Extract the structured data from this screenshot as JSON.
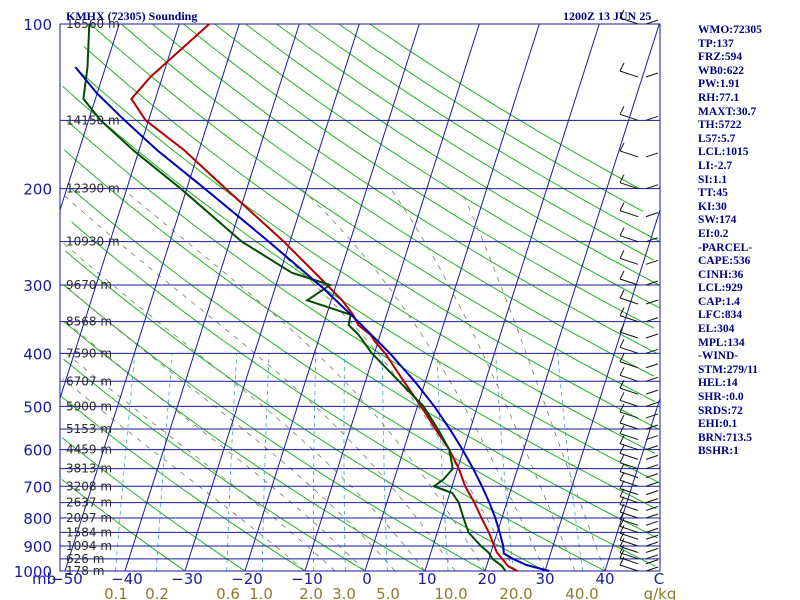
{
  "header": {
    "station": "KMHX (72305) Sounding",
    "time": "1200Z 13 JUN 25"
  },
  "stats": [
    "WMO:72305",
    "TP:137",
    "FRZ:594",
    "WB0:622",
    "PW:1.91",
    "RH:77.1",
    "MAXT:30.7",
    "TH:5722",
    "L57:5.7",
    "LCL:1015",
    "LI:-2.7",
    "SI:1.1",
    "TT:45",
    "KI:30",
    "SW:174",
    "EI:0.2",
    "-PARCEL-",
    "CAPE:536",
    "CINH:36",
    "LCL:929",
    "CAP:1.4",
    "LFC:834",
    "EL:304",
    "MPL:134",
    "-WIND-",
    "STM:279/11",
    "HEL:14",
    "SHR-:0.0",
    "SRDS:72",
    "EHI:0.1",
    "BRN:713.5",
    "BSHR:1"
  ],
  "chart_data": {
    "type": "line",
    "title": "KMHX (72305) Sounding",
    "subtitle": "1200Z 13 JUN 25",
    "xlabel": "C",
    "ylabel": "mb",
    "ylim": [
      1000,
      100
    ],
    "xlim": [
      -50,
      50
    ],
    "y_scale": "log",
    "pressure_ticks": [
      100,
      200,
      300,
      400,
      500,
      600,
      700,
      800,
      900,
      1000
    ],
    "pressure_unit_label": "mb",
    "temperature_ticks": [
      "-50",
      "-40",
      "-30",
      "-20",
      "-10",
      "0",
      "10",
      "20",
      "30",
      "40"
    ],
    "temperature_unit_label": "C",
    "mixing_ratio_ticks": [
      "0.1",
      "0.2",
      "0.6",
      "1.0",
      "2.0",
      "3.0",
      "5.0",
      "10.0",
      "20.0",
      "40.0"
    ],
    "mixing_ratio_unit_label": "g/kg",
    "height_labels": [
      {
        "p": 100,
        "text": "16560 m"
      },
      {
        "p": 150,
        "text": "14150 m"
      },
      {
        "p": 200,
        "text": "12390 m"
      },
      {
        "p": 250,
        "text": "10930 m"
      },
      {
        "p": 300,
        "text": "9670 m"
      },
      {
        "p": 350,
        "text": "8568 m"
      },
      {
        "p": 400,
        "text": "7590 m"
      },
      {
        "p": 450,
        "text": "6707 m"
      },
      {
        "p": 500,
        "text": "5900 m"
      },
      {
        "p": 550,
        "text": "5153 m"
      },
      {
        "p": 600,
        "text": "4459 m"
      },
      {
        "p": 650,
        "text": "3813 m"
      },
      {
        "p": 700,
        "text": "3208 m"
      },
      {
        "p": 750,
        "text": "2637 m"
      },
      {
        "p": 800,
        "text": "2097 m"
      },
      {
        "p": 850,
        "text": "1584 m"
      },
      {
        "p": 900,
        "text": "1094 m"
      },
      {
        "p": 950,
        "text": "626 m"
      },
      {
        "p": 1000,
        "text": "178 m"
      }
    ],
    "series": [
      {
        "key": "temperature",
        "color": "#b40000",
        "points": [
          [
            1000,
            25.4
          ],
          [
            980,
            23.6
          ],
          [
            950,
            22.2
          ],
          [
            925,
            21.0
          ],
          [
            900,
            20.2
          ],
          [
            850,
            18.6
          ],
          [
            800,
            16.6
          ],
          [
            750,
            14.6
          ],
          [
            700,
            12.2
          ],
          [
            650,
            10.2
          ],
          [
            600,
            7.6
          ],
          [
            550,
            4.2
          ],
          [
            500,
            0.6
          ],
          [
            450,
            -3.6
          ],
          [
            400,
            -8.2
          ],
          [
            380,
            -10.6
          ],
          [
            370,
            -11.6
          ],
          [
            355,
            -14.2
          ],
          [
            340,
            -15.6
          ],
          [
            320,
            -18.2
          ],
          [
            300,
            -21.5
          ],
          [
            250,
            -31.0
          ],
          [
            200,
            -43.5
          ],
          [
            170,
            -52.5
          ],
          [
            150,
            -60.5
          ],
          [
            137,
            -64.0
          ],
          [
            125,
            -62.0
          ],
          [
            110,
            -58.0
          ],
          [
            100,
            -55.0
          ]
        ]
      },
      {
        "key": "dewpoint",
        "color": "#004c00",
        "points": [
          [
            1000,
            23.4
          ],
          [
            980,
            22.6
          ],
          [
            950,
            20.6
          ],
          [
            925,
            19.6
          ],
          [
            900,
            18.0
          ],
          [
            850,
            15.2
          ],
          [
            800,
            13.6
          ],
          [
            750,
            12.0
          ],
          [
            720,
            10.4
          ],
          [
            700,
            7.0
          ],
          [
            680,
            8.2
          ],
          [
            650,
            9.2
          ],
          [
            600,
            7.6
          ],
          [
            550,
            4.6
          ],
          [
            500,
            1.0
          ],
          [
            450,
            -4.4
          ],
          [
            400,
            -10.4
          ],
          [
            370,
            -13.6
          ],
          [
            355,
            -15.8
          ],
          [
            340,
            -16.0
          ],
          [
            320,
            -24.0
          ],
          [
            300,
            -21.0
          ],
          [
            285,
            -28.0
          ],
          [
            250,
            -38.0
          ],
          [
            200,
            -51.0
          ],
          [
            170,
            -61.0
          ],
          [
            150,
            -68.0
          ],
          [
            137,
            -72.0
          ],
          [
            120,
            -73.0
          ],
          [
            100,
            -75.0
          ]
        ]
      },
      {
        "key": "parcel",
        "color": "#0000b4",
        "points": [
          [
            1000,
            30.7
          ],
          [
            975,
            26.6
          ],
          [
            950,
            24.0
          ],
          [
            929,
            22.2
          ],
          [
            900,
            21.7
          ],
          [
            850,
            20.4
          ],
          [
            800,
            18.9
          ],
          [
            750,
            17.1
          ],
          [
            700,
            15.0
          ],
          [
            650,
            12.6
          ],
          [
            600,
            9.8
          ],
          [
            550,
            6.6
          ],
          [
            500,
            2.8
          ],
          [
            450,
            -1.8
          ],
          [
            400,
            -7.4
          ],
          [
            350,
            -14.4
          ],
          [
            304,
            -22.0
          ],
          [
            250,
            -33.5
          ],
          [
            200,
            -47.0
          ],
          [
            170,
            -57.0
          ],
          [
            150,
            -64.0
          ],
          [
            134,
            -70.0
          ],
          [
            120,
            -75.0
          ]
        ]
      }
    ]
  }
}
